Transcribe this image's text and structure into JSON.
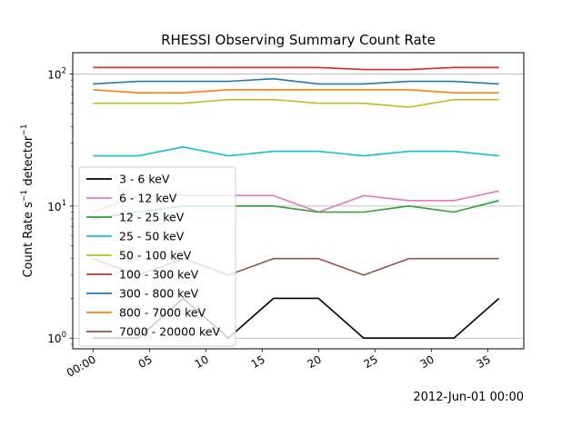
{
  "chart_data": {
    "type": "line",
    "title": "RHESSI Observing Summary Count Rate",
    "ylabel_main": "Count Rate s",
    "ylabel_sup1": "−1",
    "ylabel_mid": " detector",
    "ylabel_sup2": "−1",
    "date_label": "2012-Jun-01 00:00",
    "y_scale": "log",
    "ylim": [
      0.83,
      145
    ],
    "xlim": [
      -1.8,
      38.2
    ],
    "grid": "horizontal",
    "legend_position": "lower-left",
    "x_ticks": [
      0,
      5,
      10,
      15,
      20,
      25,
      30,
      35
    ],
    "x_tick_labels": [
      "00:00",
      "05",
      "10",
      "15",
      "20",
      "25",
      "30",
      "35"
    ],
    "y_ticks": [
      {
        "value": 1,
        "base": "10",
        "exp": "0"
      },
      {
        "value": 10,
        "base": "10",
        "exp": "1"
      },
      {
        "value": 100,
        "base": "10",
        "exp": "2"
      }
    ],
    "x": [
      0,
      4,
      8,
      12,
      16,
      20,
      24,
      28,
      32,
      36
    ],
    "series": [
      {
        "name": "3 - 6 keV",
        "color": "#000000",
        "values": [
          1,
          1,
          2,
          1,
          2,
          2,
          1,
          1,
          1,
          2
        ]
      },
      {
        "name": "6 - 12 keV",
        "color": "#e377c2",
        "values": [
          9,
          12,
          12,
          12,
          12,
          9,
          12,
          11,
          11,
          13
        ]
      },
      {
        "name": "12 - 25 keV",
        "color": "#2ca02c",
        "values": [
          8,
          9,
          10,
          10,
          10,
          9,
          9,
          10,
          9,
          11
        ]
      },
      {
        "name": "25 - 50 keV",
        "color": "#17becf",
        "values": [
          24,
          24,
          28,
          24,
          26,
          26,
          24,
          26,
          26,
          24
        ]
      },
      {
        "name": "50 - 100 keV",
        "color": "#bcbd22",
        "values": [
          60,
          60,
          60,
          64,
          64,
          60,
          60,
          56,
          64,
          64
        ]
      },
      {
        "name": "100 - 300 keV",
        "color": "#d62728",
        "values": [
          112,
          112,
          112,
          112,
          112,
          112,
          108,
          108,
          112,
          112
        ]
      },
      {
        "name": "300 - 800 keV",
        "color": "#1f77b4",
        "values": [
          84,
          88,
          88,
          88,
          92,
          84,
          84,
          88,
          88,
          84
        ]
      },
      {
        "name": "800 - 7000 keV",
        "color": "#ff7f0e",
        "values": [
          76,
          72,
          72,
          76,
          76,
          76,
          76,
          76,
          72,
          72
        ]
      },
      {
        "name": "7000 - 20000 keV",
        "color": "#8c564b",
        "values": [
          4,
          3,
          4,
          3,
          4,
          4,
          3,
          4,
          4,
          4
        ]
      }
    ]
  }
}
